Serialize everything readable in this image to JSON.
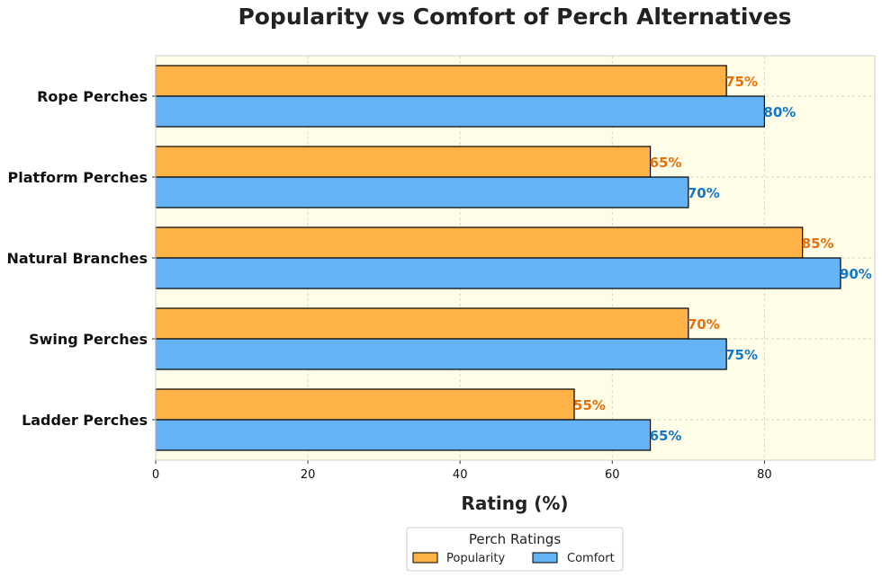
{
  "chart_data": {
    "type": "bar",
    "orientation": "horizontal",
    "title": "Popularity vs Comfort of Perch Alternatives",
    "xlabel": "Rating (%)",
    "ylabel": "",
    "categories": [
      "Rope Perches",
      "Platform Perches",
      "Natural Branches",
      "Swing Perches",
      "Ladder Perches"
    ],
    "series": [
      {
        "name": "Popularity",
        "values": [
          75,
          65,
          85,
          70,
          55
        ],
        "color": "#FFB347",
        "label_color": "#E8700A"
      },
      {
        "name": "Comfort",
        "values": [
          80,
          70,
          90,
          75,
          65
        ],
        "color": "#63B3F5",
        "label_color": "#1478C8"
      }
    ],
    "value_suffix": "%",
    "xlim": [
      0,
      94.5
    ],
    "xticks": [
      0,
      20,
      40,
      60,
      80
    ],
    "grid": true,
    "background": "#FFFDE8",
    "legend": {
      "title": "Perch Ratings",
      "placement": "bottom-center"
    }
  }
}
